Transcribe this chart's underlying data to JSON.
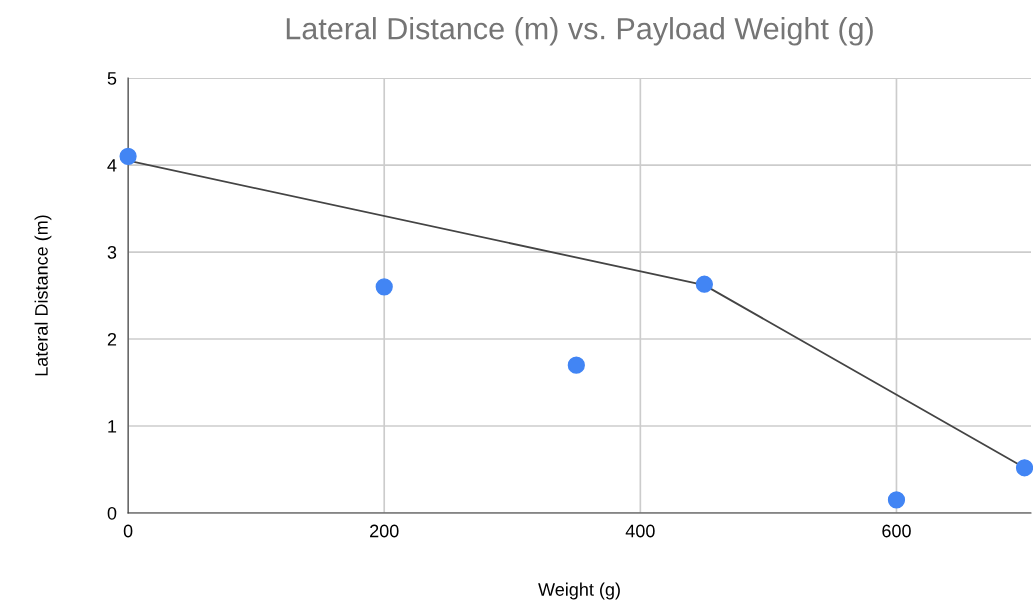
{
  "chart_data": {
    "type": "scatter",
    "title": "Lateral Distance (m) vs. Payload Weight (g)",
    "xlabel": "Weight (g)",
    "ylabel": "Lateral Distance (m)",
    "series": [
      {
        "color": "#4285f4",
        "marker": "circle",
        "x": [
          0,
          200,
          350,
          450,
          600,
          700
        ],
        "values": [
          4.1,
          2.6,
          1.7,
          2.63,
          0.15,
          0.52
        ]
      },
      {
        "type": "line",
        "marker": "none",
        "color": "#444444",
        "x": [
          0,
          450,
          700
        ],
        "values": [
          4.05,
          2.62,
          0.52
        ]
      }
    ],
    "xlim": [
      0,
      705
    ],
    "xticks": [
      0,
      200,
      400,
      600
    ],
    "ylim": [
      0,
      5
    ],
    "yticks": [
      0,
      1,
      2,
      3,
      4,
      5
    ],
    "grid": true
  }
}
